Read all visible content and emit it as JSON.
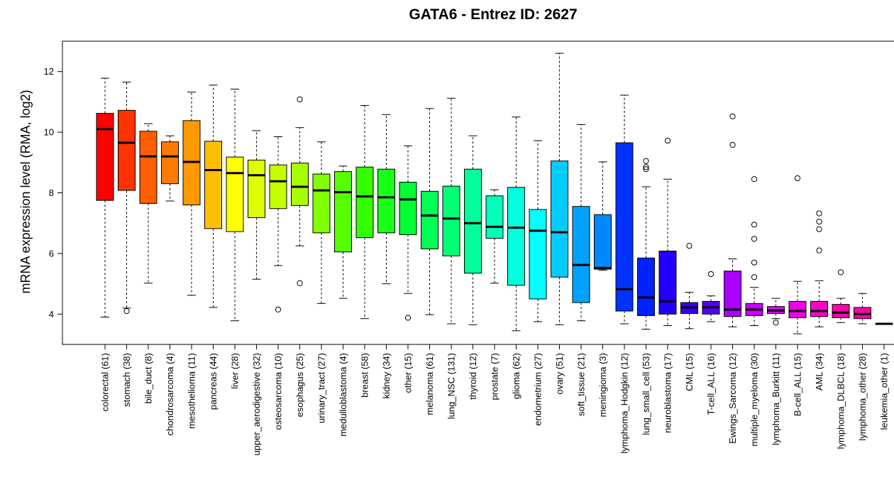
{
  "chart_data": {
    "type": "boxplot",
    "title": "GATA6  -  Entrez ID: 2627",
    "ylabel": "mRNA expression level (RMA, log2)",
    "xlabel": "",
    "ylim": [
      3.0,
      13.0
    ],
    "yticks": [
      4,
      6,
      8,
      10,
      12
    ],
    "grid": false,
    "legend": "none",
    "categories": [
      {
        "label": "colorectal (61)",
        "color": "#ff0000",
        "whisker_low": 3.9,
        "q1": 7.75,
        "median": 10.1,
        "q3": 10.62,
        "whisker_high": 11.78,
        "outliers": []
      },
      {
        "label": "stomach (38)",
        "color": "#ff3300",
        "whisker_low": 4.2,
        "q1": 8.08,
        "median": 9.65,
        "q3": 10.72,
        "whisker_high": 11.65,
        "outliers": [
          4.1
        ]
      },
      {
        "label": "bile_duct (8)",
        "color": "#ff5e00",
        "whisker_low": 5.02,
        "q1": 7.65,
        "median": 9.2,
        "q3": 10.03,
        "whisker_high": 10.28,
        "outliers": []
      },
      {
        "label": "chondrosarcoma (4)",
        "color": "#ff7b00",
        "whisker_low": 7.73,
        "q1": 8.3,
        "median": 9.2,
        "q3": 9.68,
        "whisker_high": 9.88,
        "outliers": []
      },
      {
        "label": "mesothelioma (11)",
        "color": "#ff9900",
        "whisker_low": 4.62,
        "q1": 7.6,
        "median": 9.02,
        "q3": 10.38,
        "whisker_high": 11.32,
        "outliers": []
      },
      {
        "label": "pancreas (44)",
        "color": "#ffbf00",
        "whisker_low": 4.22,
        "q1": 6.82,
        "median": 8.75,
        "q3": 9.7,
        "whisker_high": 11.55,
        "outliers": []
      },
      {
        "label": "liver (28)",
        "color": "#ffff00",
        "whisker_low": 3.78,
        "q1": 6.72,
        "median": 8.65,
        "q3": 9.18,
        "whisker_high": 11.42,
        "outliers": []
      },
      {
        "label": "upper_aerodigestive (32)",
        "color": "#ddff00",
        "whisker_low": 5.15,
        "q1": 7.18,
        "median": 8.58,
        "q3": 9.08,
        "whisker_high": 10.05,
        "outliers": []
      },
      {
        "label": "osteosarcoma (10)",
        "color": "#c4ff00",
        "whisker_low": 5.6,
        "q1": 7.48,
        "median": 8.38,
        "q3": 8.92,
        "whisker_high": 9.85,
        "outliers": [
          4.15
        ]
      },
      {
        "label": "esophagus (25)",
        "color": "#a8ff00",
        "whisker_low": 6.25,
        "q1": 7.58,
        "median": 8.2,
        "q3": 8.98,
        "whisker_high": 10.15,
        "outliers": [
          11.08,
          5.02
        ]
      },
      {
        "label": "urinary_tract (27)",
        "color": "#7fff00",
        "whisker_low": 4.35,
        "q1": 6.68,
        "median": 8.08,
        "q3": 8.62,
        "whisker_high": 9.68,
        "outliers": []
      },
      {
        "label": "medulloblastoma (4)",
        "color": "#55ff00",
        "whisker_low": 4.52,
        "q1": 6.05,
        "median": 8.02,
        "q3": 8.7,
        "whisker_high": 8.88,
        "outliers": []
      },
      {
        "label": "breast (58)",
        "color": "#33ff00",
        "whisker_low": 3.85,
        "q1": 6.52,
        "median": 7.88,
        "q3": 8.85,
        "whisker_high": 10.88,
        "outliers": []
      },
      {
        "label": "kidney (34)",
        "color": "#1aff1a",
        "whisker_low": 5.0,
        "q1": 6.68,
        "median": 7.85,
        "q3": 8.78,
        "whisker_high": 10.58,
        "outliers": []
      },
      {
        "label": "other (15)",
        "color": "#00ff33",
        "whisker_low": 4.68,
        "q1": 6.62,
        "median": 7.78,
        "q3": 8.35,
        "whisker_high": 9.55,
        "outliers": [
          3.88
        ]
      },
      {
        "label": "melanoma (61)",
        "color": "#00ff55",
        "whisker_low": 3.98,
        "q1": 6.15,
        "median": 7.25,
        "q3": 8.05,
        "whisker_high": 10.78,
        "outliers": []
      },
      {
        "label": "lung_NSC (131)",
        "color": "#00ff77",
        "whisker_low": 3.68,
        "q1": 5.92,
        "median": 7.15,
        "q3": 8.22,
        "whisker_high": 11.12,
        "outliers": []
      },
      {
        "label": "thyroid (12)",
        "color": "#00ff99",
        "whisker_low": 3.65,
        "q1": 5.35,
        "median": 7.0,
        "q3": 8.78,
        "whisker_high": 9.88,
        "outliers": []
      },
      {
        "label": "prostate (7)",
        "color": "#00ffbb",
        "whisker_low": 5.02,
        "q1": 6.5,
        "median": 6.88,
        "q3": 7.9,
        "whisker_high": 8.1,
        "outliers": []
      },
      {
        "label": "glioma (62)",
        "color": "#00ffdd",
        "whisker_low": 3.45,
        "q1": 4.95,
        "median": 6.85,
        "q3": 8.18,
        "whisker_high": 10.5,
        "outliers": []
      },
      {
        "label": "endometrium (27)",
        "color": "#00ffff",
        "whisker_low": 3.75,
        "q1": 4.5,
        "median": 6.75,
        "q3": 7.45,
        "whisker_high": 9.72,
        "outliers": []
      },
      {
        "label": "ovary (51)",
        "color": "#00ccff",
        "whisker_low": 3.65,
        "q1": 5.22,
        "median": 6.7,
        "q3": 9.05,
        "whisker_high": 12.6,
        "outliers": []
      },
      {
        "label": "soft_tissue (21)",
        "color": "#00a2ff",
        "whisker_low": 3.78,
        "q1": 4.38,
        "median": 5.62,
        "q3": 7.55,
        "whisker_high": 10.25,
        "outliers": []
      },
      {
        "label": "meningioma (3)",
        "color": "#0088ff",
        "whisker_low": 5.45,
        "q1": 5.48,
        "median": 5.52,
        "q3": 7.28,
        "whisker_high": 9.02,
        "outliers": []
      },
      {
        "label": "lymphoma_Hodgkin (12)",
        "color": "#0033ff",
        "whisker_low": 3.68,
        "q1": 4.1,
        "median": 4.82,
        "q3": 9.65,
        "whisker_high": 11.22,
        "outliers": []
      },
      {
        "label": "lung_small_cell (53)",
        "color": "#0022ff",
        "whisker_low": 3.5,
        "q1": 3.95,
        "median": 4.55,
        "q3": 5.85,
        "whisker_high": 8.2,
        "outliers": [
          9.05,
          8.85,
          8.78
        ]
      },
      {
        "label": "neuroblastoma (17)",
        "color": "#2200ff",
        "whisker_low": 3.62,
        "q1": 4.0,
        "median": 4.42,
        "q3": 6.08,
        "whisker_high": 8.45,
        "outliers": [
          9.72
        ]
      },
      {
        "label": "CML (15)",
        "color": "#3300ff",
        "whisker_low": 3.52,
        "q1": 4.02,
        "median": 4.22,
        "q3": 4.38,
        "whisker_high": 4.72,
        "outliers": [
          6.25
        ]
      },
      {
        "label": "T-cell_ALL (16)",
        "color": "#5500ff",
        "whisker_low": 3.75,
        "q1": 4.0,
        "median": 4.22,
        "q3": 4.42,
        "whisker_high": 4.6,
        "outliers": [
          5.32
        ]
      },
      {
        "label": "Ewings_Sarcoma (12)",
        "color": "#aa00ff",
        "whisker_low": 3.58,
        "q1": 3.92,
        "median": 4.15,
        "q3": 5.42,
        "whisker_high": 5.82,
        "outliers": [
          10.52,
          9.58
        ]
      },
      {
        "label": "multiple_myeloma (30)",
        "color": "#cc00ff",
        "whisker_low": 3.62,
        "q1": 3.95,
        "median": 4.15,
        "q3": 4.35,
        "whisker_high": 4.88,
        "outliers": [
          8.45,
          6.95,
          6.48,
          5.7,
          5.22
        ]
      },
      {
        "label": "lymphoma_Burkitt (11)",
        "color": "#dd00ff",
        "whisker_low": 3.85,
        "q1": 4.02,
        "median": 4.12,
        "q3": 4.25,
        "whisker_high": 4.52,
        "outliers": [
          3.72
        ]
      },
      {
        "label": "B-cell_ALL (15)",
        "color": "#ee00ee",
        "whisker_low": 3.35,
        "q1": 3.88,
        "median": 4.1,
        "q3": 4.42,
        "whisker_high": 5.08,
        "outliers": [
          8.48
        ]
      },
      {
        "label": "AML (34)",
        "color": "#ff00cc",
        "whisker_low": 3.58,
        "q1": 3.92,
        "median": 4.1,
        "q3": 4.42,
        "whisker_high": 5.1,
        "outliers": [
          7.32,
          7.05,
          6.8,
          6.1
        ]
      },
      {
        "label": "lymphoma_DLBCL (18)",
        "color": "#ff00aa",
        "whisker_low": 3.72,
        "q1": 3.88,
        "median": 4.05,
        "q3": 4.32,
        "whisker_high": 4.52,
        "outliers": [
          5.38
        ]
      },
      {
        "label": "lymphoma_other (28)",
        "color": "#ff00aa",
        "whisker_low": 3.68,
        "q1": 3.85,
        "median": 4.0,
        "q3": 4.22,
        "whisker_high": 4.68,
        "outliers": []
      },
      {
        "label": "leukemia_other (1)",
        "color": "#ff0088",
        "whisker_low": 3.68,
        "q1": 3.68,
        "median": 3.68,
        "q3": 3.68,
        "whisker_high": 3.68,
        "outliers": []
      }
    ]
  }
}
